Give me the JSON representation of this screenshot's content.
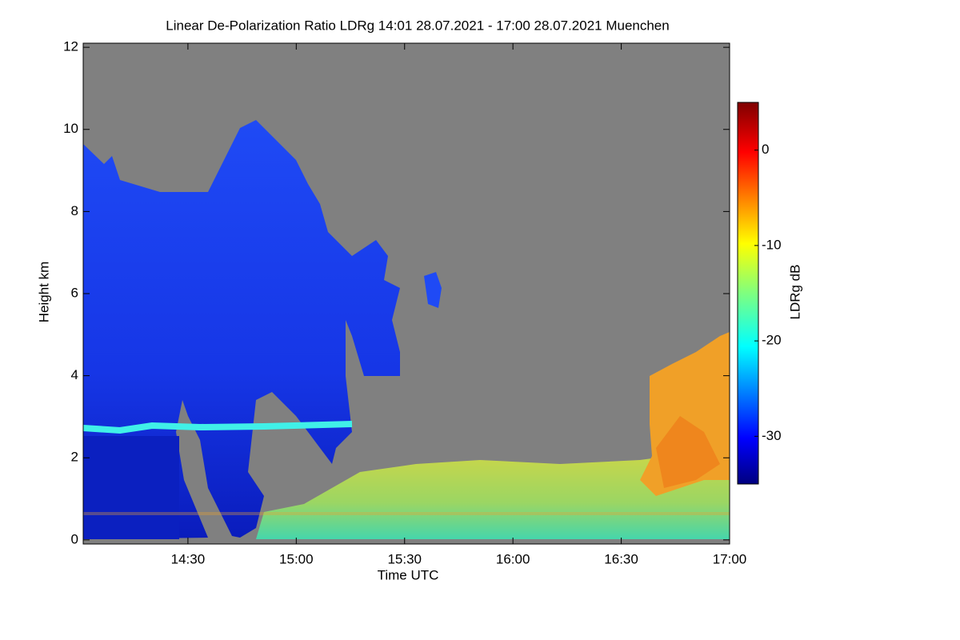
{
  "chart_data": {
    "type": "heatmap",
    "title": "Linear De-Polarization Ratio LDRg   14:01 28.07.2021 - 17:00 28.07.2021 Muenchen",
    "x_label": "Time UTC",
    "y_label": "Height km",
    "colorbar_label": "LDRg dB",
    "xlim": [
      841,
      1020
    ],
    "xticks": [
      {
        "value": 870,
        "label": "14:30"
      },
      {
        "value": 900,
        "label": "15:00"
      },
      {
        "value": 930,
        "label": "15:30"
      },
      {
        "value": 960,
        "label": "16:00"
      },
      {
        "value": 990,
        "label": "16:30"
      },
      {
        "value": 1020,
        "label": "17:00"
      }
    ],
    "ylim": [
      -0.1,
      12.1
    ],
    "yticks": [
      0,
      2,
      4,
      6,
      8,
      10,
      12
    ],
    "clim": [
      -35,
      5
    ],
    "cticks": [
      0,
      -10,
      -20,
      -30
    ],
    "colormap": "jet"
  }
}
